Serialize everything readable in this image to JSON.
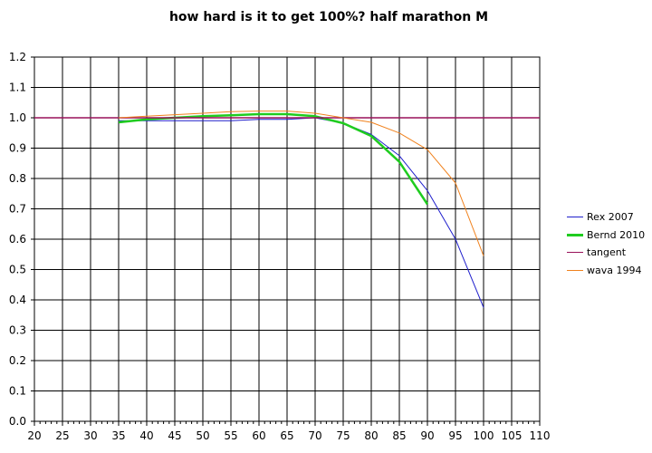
{
  "chart_data": {
    "type": "line",
    "title": "how hard is it to get 100%? half marathon M",
    "xlabel": "",
    "ylabel": "",
    "xlim": [
      20,
      110
    ],
    "ylim": [
      0,
      1.2
    ],
    "xticks": [
      20,
      25,
      30,
      35,
      40,
      45,
      50,
      55,
      60,
      65,
      70,
      75,
      80,
      85,
      90,
      95,
      100,
      105,
      110
    ],
    "yticks": [
      "0.0",
      "0.1",
      "0.2",
      "0.3",
      "0.4",
      "0.5",
      "0.6",
      "0.7",
      "0.8",
      "0.9",
      "1.0",
      "1.1",
      "1.2"
    ],
    "grid": true,
    "legend": "right",
    "series": [
      {
        "name": "Rex 2007",
        "color": "#1f1fcc",
        "width": 1,
        "x": [
          35,
          40,
          45,
          50,
          55,
          60,
          65,
          70,
          75,
          80,
          85,
          90,
          95,
          100
        ],
        "y": [
          0.99,
          0.99,
          0.99,
          0.99,
          0.99,
          0.995,
          0.995,
          1.0,
          0.982,
          0.945,
          0.875,
          0.76,
          0.6,
          0.375
        ]
      },
      {
        "name": "Bernd 2010",
        "color": "#1fcc1f",
        "width": 2.5,
        "x": [
          35,
          40,
          45,
          50,
          55,
          60,
          65,
          70,
          75,
          80,
          85,
          90
        ],
        "y": [
          0.985,
          0.995,
          1.0,
          1.005,
          1.008,
          1.012,
          1.012,
          1.005,
          0.982,
          0.94,
          0.855,
          0.715
        ]
      },
      {
        "name": "tangent",
        "color": "#99115a",
        "width": 1.5,
        "x": [
          20,
          110
        ],
        "y": [
          1.0,
          1.0
        ]
      },
      {
        "name": "wava 1994",
        "color": "#f0821e",
        "width": 1,
        "x": [
          35,
          40,
          45,
          50,
          55,
          60,
          65,
          70,
          75,
          80,
          85,
          90,
          95,
          100
        ],
        "y": [
          1.0,
          1.005,
          1.01,
          1.015,
          1.02,
          1.022,
          1.022,
          1.015,
          1.0,
          0.985,
          0.95,
          0.895,
          0.785,
          0.545
        ]
      }
    ]
  }
}
